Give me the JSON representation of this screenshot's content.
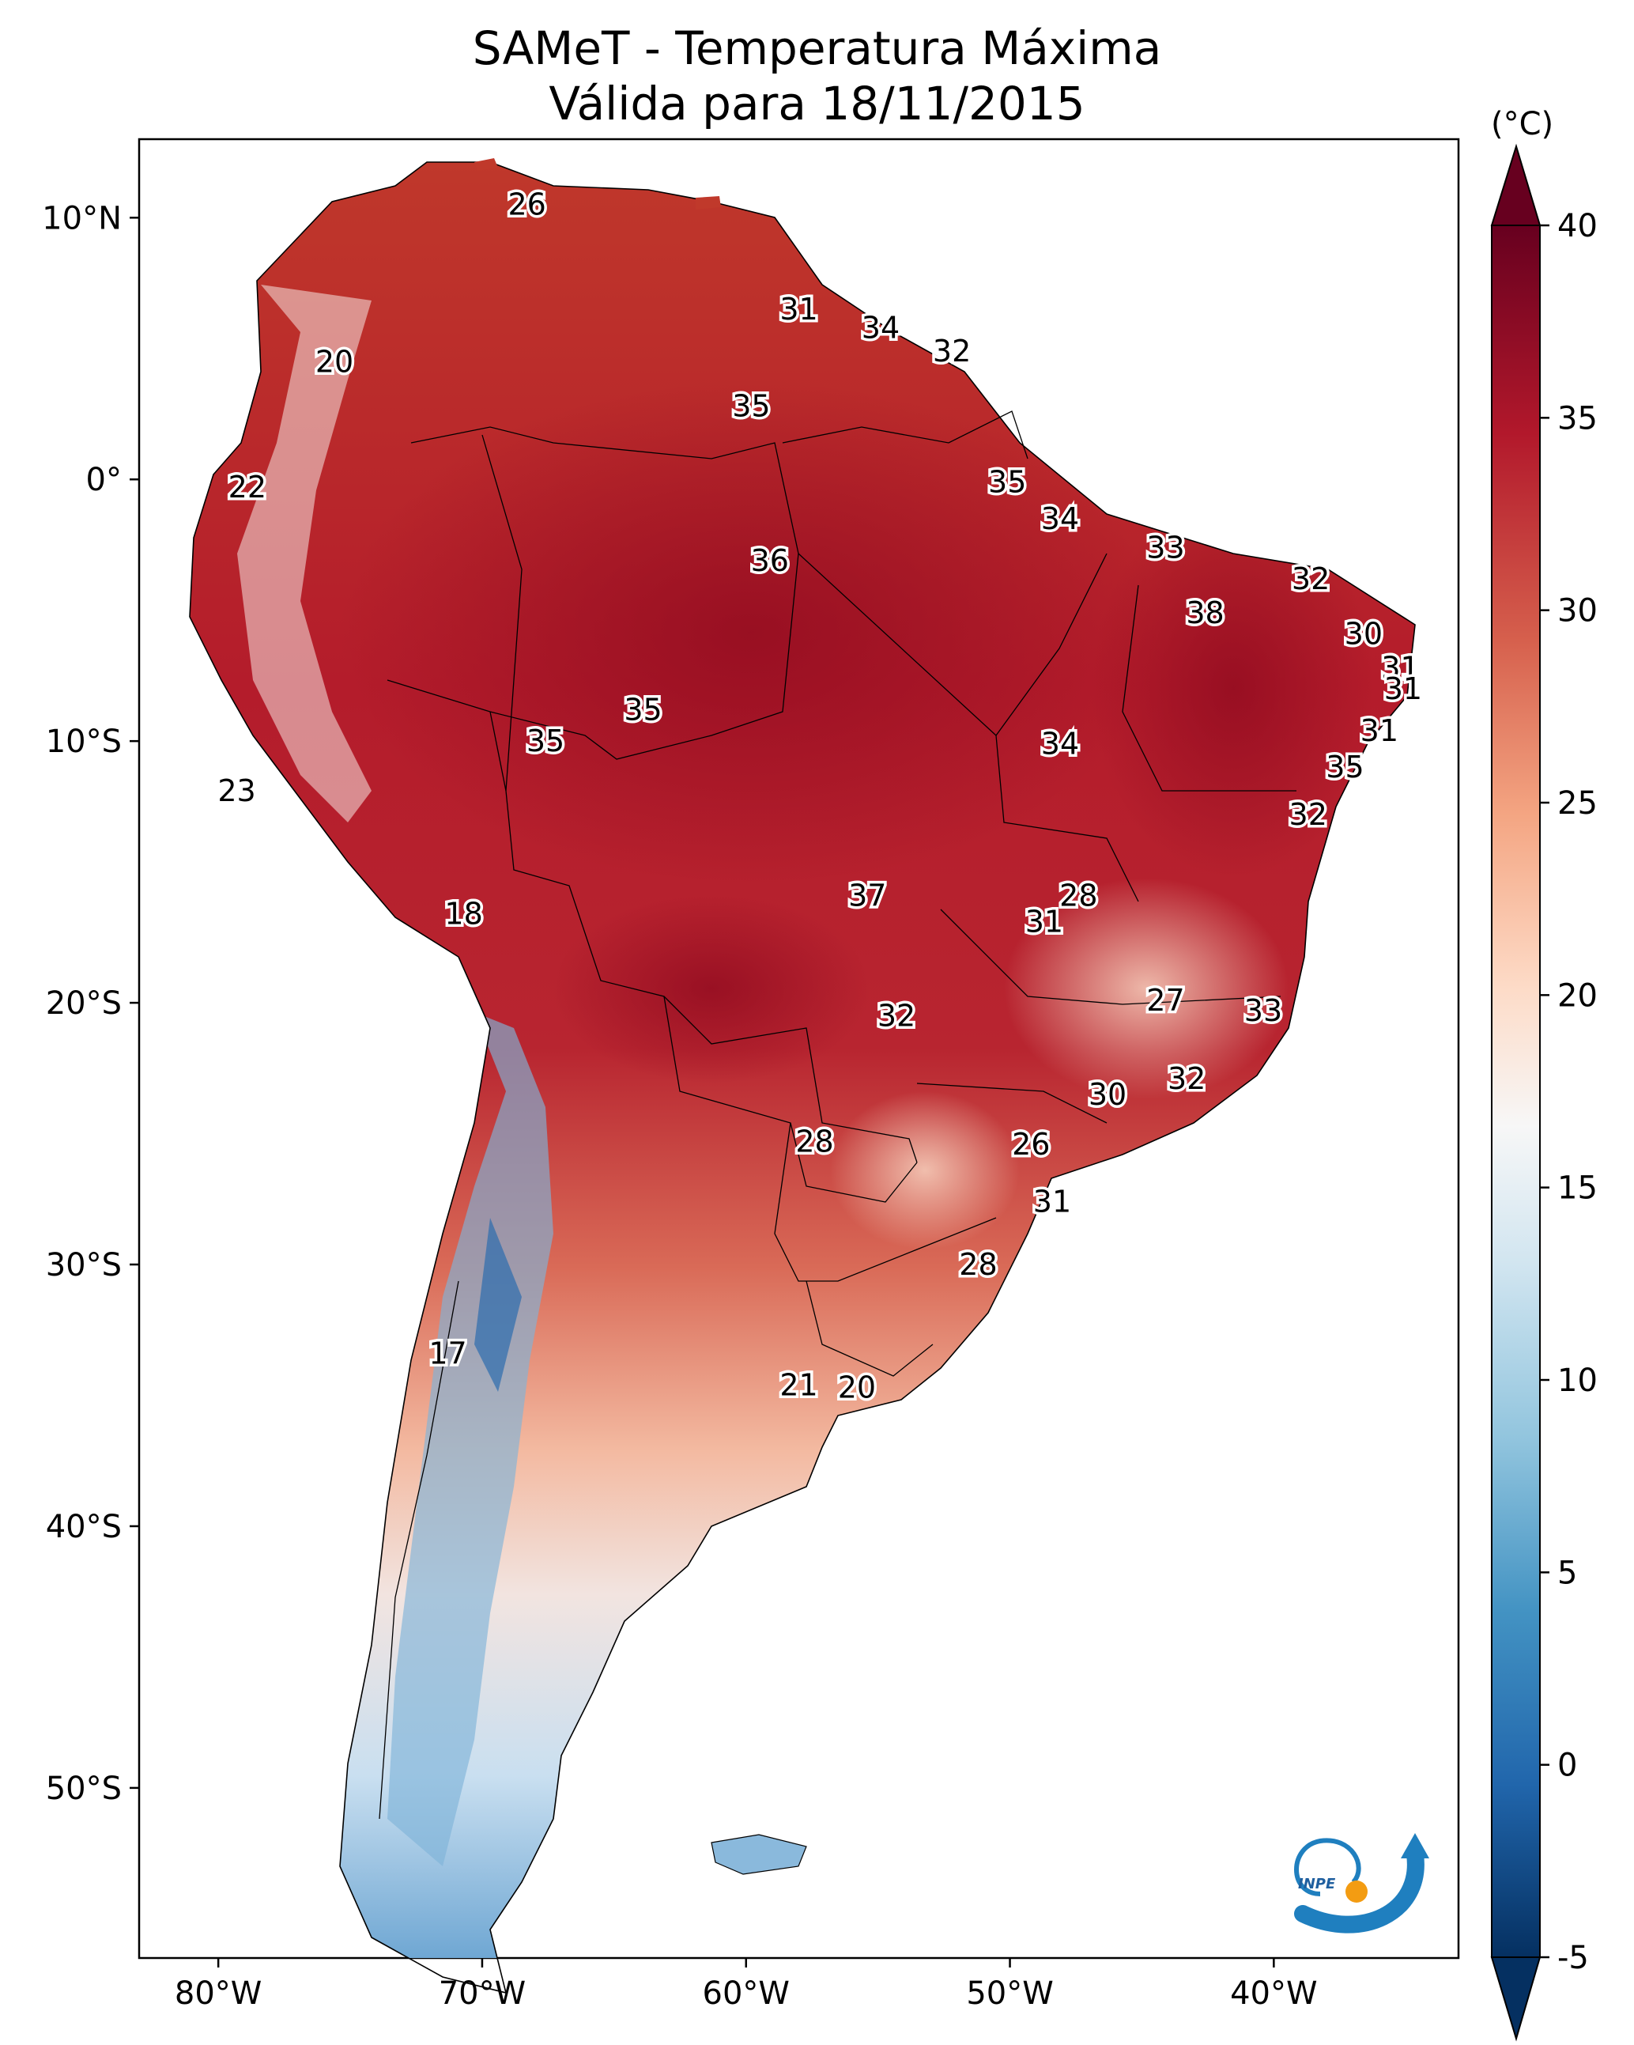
{
  "title": {
    "line1": "SAMeT - Temperatura Máxima",
    "line2": "Válida para 18/11/2015"
  },
  "axes": {
    "lat_ticks": [
      {
        "value": 10,
        "label": "10°N"
      },
      {
        "value": 0,
        "label": "0°"
      },
      {
        "value": -10,
        "label": "10°S"
      },
      {
        "value": -20,
        "label": "20°S"
      },
      {
        "value": -30,
        "label": "30°S"
      },
      {
        "value": -40,
        "label": "40°S"
      },
      {
        "value": -50,
        "label": "50°S"
      }
    ],
    "lon_ticks": [
      {
        "value": -80,
        "label": "80°W"
      },
      {
        "value": -70,
        "label": "70°W"
      },
      {
        "value": -60,
        "label": "60°W"
      },
      {
        "value": -50,
        "label": "50°W"
      },
      {
        "value": -40,
        "label": "40°W"
      }
    ],
    "lon_range": [
      -83,
      -33
    ],
    "lat_range": [
      -56.5,
      13
    ]
  },
  "colorbar": {
    "unit_label": "(°C)",
    "min": -5,
    "max": 40,
    "extend": "both",
    "ticks": [
      {
        "value": 40,
        "label": "40"
      },
      {
        "value": 35,
        "label": "35"
      },
      {
        "value": 30,
        "label": "30"
      },
      {
        "value": 25,
        "label": "25"
      },
      {
        "value": 20,
        "label": "20"
      },
      {
        "value": 15,
        "label": "15"
      },
      {
        "value": 10,
        "label": "10"
      },
      {
        "value": 5,
        "label": "5"
      },
      {
        "value": 0,
        "label": "0"
      },
      {
        "value": -5,
        "label": "-5"
      }
    ],
    "colors": [
      "#053061",
      "#2166ac",
      "#4393c3",
      "#92c5de",
      "#d1e5f0",
      "#f7f7f7",
      "#fddbc7",
      "#f4a582",
      "#d6604d",
      "#b2182b",
      "#67001f"
    ]
  },
  "temperature_labels": [
    {
      "lon": -68.3,
      "lat": 10.5,
      "temp": "26"
    },
    {
      "lon": -75.6,
      "lat": 4.5,
      "temp": "20"
    },
    {
      "lon": -58.0,
      "lat": 6.5,
      "temp": "31"
    },
    {
      "lon": -54.9,
      "lat": 5.8,
      "temp": "34"
    },
    {
      "lon": -52.2,
      "lat": 4.9,
      "temp": "32"
    },
    {
      "lon": -59.8,
      "lat": 2.8,
      "temp": "35"
    },
    {
      "lon": -78.9,
      "lat": -0.3,
      "temp": "22"
    },
    {
      "lon": -50.1,
      "lat": -0.1,
      "temp": "35"
    },
    {
      "lon": -48.1,
      "lat": -1.5,
      "temp": "34"
    },
    {
      "lon": -59.1,
      "lat": -3.1,
      "temp": "36"
    },
    {
      "lon": -44.1,
      "lat": -2.6,
      "temp": "33"
    },
    {
      "lon": -38.6,
      "lat": -3.8,
      "temp": "32"
    },
    {
      "lon": -42.6,
      "lat": -5.1,
      "temp": "38"
    },
    {
      "lon": -36.6,
      "lat": -5.9,
      "temp": "30"
    },
    {
      "lon": -35.2,
      "lat": -7.2,
      "temp": "31"
    },
    {
      "lon": -35.1,
      "lat": -8.0,
      "temp": "31"
    },
    {
      "lon": -63.9,
      "lat": -8.8,
      "temp": "35"
    },
    {
      "lon": -67.6,
      "lat": -10.0,
      "temp": "35"
    },
    {
      "lon": -48.1,
      "lat": -10.1,
      "temp": "34"
    },
    {
      "lon": -36.0,
      "lat": -9.6,
      "temp": "31"
    },
    {
      "lon": -37.3,
      "lat": -11.0,
      "temp": "35"
    },
    {
      "lon": -38.7,
      "lat": -12.8,
      "temp": "32"
    },
    {
      "lon": -79.3,
      "lat": -11.9,
      "temp": "23"
    },
    {
      "lon": -55.4,
      "lat": -15.9,
      "temp": "37"
    },
    {
      "lon": -47.4,
      "lat": -15.9,
      "temp": "28"
    },
    {
      "lon": -48.7,
      "lat": -16.9,
      "temp": "31"
    },
    {
      "lon": -70.7,
      "lat": -16.6,
      "temp": "18"
    },
    {
      "lon": -44.1,
      "lat": -19.9,
      "temp": "27"
    },
    {
      "lon": -40.4,
      "lat": -20.3,
      "temp": "33"
    },
    {
      "lon": -54.3,
      "lat": -20.5,
      "temp": "32"
    },
    {
      "lon": -43.3,
      "lat": -22.9,
      "temp": "32"
    },
    {
      "lon": -46.3,
      "lat": -23.5,
      "temp": "30"
    },
    {
      "lon": -49.2,
      "lat": -25.4,
      "temp": "26"
    },
    {
      "lon": -57.4,
      "lat": -25.3,
      "temp": "28"
    },
    {
      "lon": -48.4,
      "lat": -27.6,
      "temp": "31"
    },
    {
      "lon": -51.2,
      "lat": -30.0,
      "temp": "28"
    },
    {
      "lon": -71.3,
      "lat": -33.4,
      "temp": "17"
    },
    {
      "lon": -58.0,
      "lat": -34.6,
      "temp": "21"
    },
    {
      "lon": -55.8,
      "lat": -34.7,
      "temp": "20"
    }
  ],
  "logo": {
    "text": "INPE"
  }
}
